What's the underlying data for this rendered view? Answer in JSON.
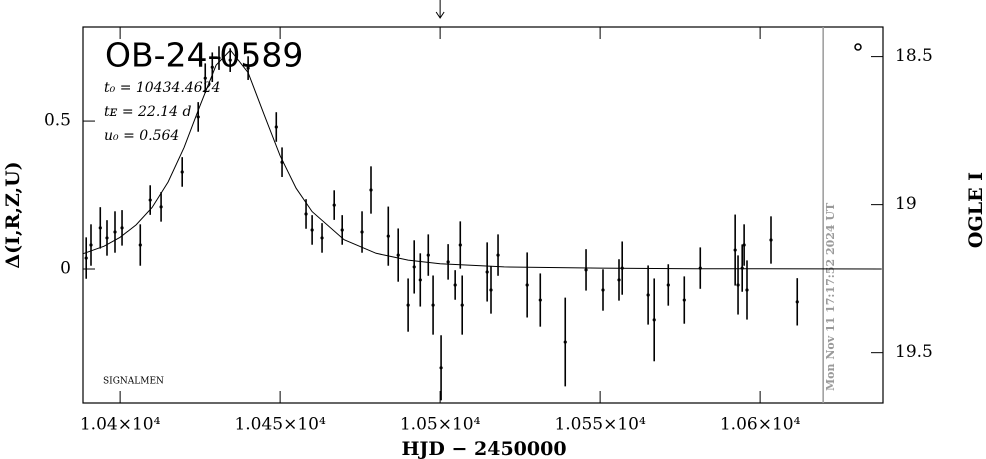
{
  "chart_data": {
    "type": "scatter",
    "title": "OB-24-0589",
    "parameters": [
      "t₀ = 10434.4624",
      "tᴇ = 22.14 d",
      "u₀ = 0.564"
    ],
    "note": "SIGNALMEN",
    "xlabel": "HJD − 2450000",
    "ylabel": "Δ(I,R,Z,U)",
    "y2label": "OGLE I",
    "xlim": [
      10388.4,
      10638.4
    ],
    "ylim": [
      -0.453,
      0.818
    ],
    "y2lim": [
      19.67,
      18.4
    ],
    "xticks": [
      {
        "value": 10400,
        "label": "1.04×10⁴"
      },
      {
        "value": 10450,
        "label": "1.045×10⁴"
      },
      {
        "value": 10500,
        "label": "1.05×10⁴"
      },
      {
        "value": 10550,
        "label": "1.055×10⁴"
      },
      {
        "value": 10600,
        "label": "1.06×10⁴"
      }
    ],
    "yticks": [
      0,
      0.5
    ],
    "y2ticks": [
      18.5,
      19,
      19.5
    ],
    "marker_x": 10619.7,
    "marker_label": "Mon Nov 11 17:17:52 2024 UT",
    "marker_color": "#9a9a9a",
    "arrow_x": 10500,
    "series": [
      {
        "type": "errorbar",
        "color": "#000000",
        "x": [
          10389.4,
          10390.9,
          10393.8,
          10395.9,
          10398.4,
          10400.6,
          10406.3,
          10409.4,
          10412.8,
          10419.4,
          10424.4,
          10426.6,
          10428.8,
          10430.9,
          10434.4,
          10440.0,
          10448.8,
          10450.6,
          10458.1,
          10460.0,
          10463.1,
          10466.9,
          10469.4,
          10475.6,
          10478.4,
          10483.8,
          10486.9,
          10490.0,
          10491.9,
          10493.8,
          10496.3,
          10497.8,
          10500.3,
          10502.5,
          10504.7,
          10506.3,
          10506.9,
          10514.7,
          10515.9,
          10518.1,
          10527.2,
          10531.3,
          10539.1,
          10545.6,
          10550.9,
          10555.9,
          10556.9,
          10565.0,
          10566.9,
          10571.3,
          10576.3,
          10581.3,
          10592.2,
          10593.1,
          10594.4,
          10595.0,
          10595.9,
          10603.4,
          10611.6
        ],
        "values": [
          0.037,
          0.081,
          0.139,
          0.105,
          0.125,
          0.139,
          0.081,
          0.233,
          0.21,
          0.328,
          0.514,
          0.645,
          0.682,
          0.713,
          0.706,
          0.679,
          0.48,
          0.361,
          0.186,
          0.132,
          0.105,
          0.216,
          0.132,
          0.125,
          0.267,
          0.111,
          0.047,
          -0.122,
          0.007,
          -0.037,
          0.047,
          -0.122,
          -0.334,
          0.024,
          -0.054,
          0.081,
          -0.122,
          -0.01,
          -0.071,
          0.047,
          -0.054,
          -0.105,
          -0.247,
          -0.003,
          -0.071,
          -0.037,
          0.003,
          -0.088,
          -0.172,
          -0.054,
          -0.105,
          0.003,
          0.064,
          -0.054,
          0.003,
          0.081,
          -0.071,
          0.098,
          -0.111
        ],
        "errors": [
          0.07,
          0.07,
          0.07,
          0.06,
          0.07,
          0.06,
          0.07,
          0.05,
          0.05,
          0.05,
          0.05,
          0.05,
          0.05,
          0.04,
          0.04,
          0.04,
          0.05,
          0.05,
          0.05,
          0.05,
          0.05,
          0.05,
          0.05,
          0.07,
          0.08,
          0.1,
          0.09,
          0.09,
          0.09,
          0.09,
          0.07,
          0.1,
          0.11,
          0.06,
          0.05,
          0.08,
          0.1,
          0.1,
          0.08,
          0.07,
          0.11,
          0.09,
          0.15,
          0.07,
          0.07,
          0.07,
          0.09,
          0.1,
          0.14,
          0.07,
          0.08,
          0.07,
          0.12,
          0.1,
          0.08,
          0.07,
          0.1,
          0.08,
          0.08
        ]
      },
      {
        "type": "line",
        "color": "#000000",
        "x": [
          10388,
          10395,
          10400,
          10405,
          10410,
          10415,
          10420,
          10425,
          10430,
          10434.46,
          10440,
          10445,
          10450,
          10455,
          10460,
          10470,
          10480,
          10490,
          10500,
          10520,
          10550,
          10580,
          10638
        ],
        "values": [
          0.05,
          0.077,
          0.107,
          0.149,
          0.208,
          0.294,
          0.411,
          0.553,
          0.689,
          0.74,
          0.664,
          0.522,
          0.383,
          0.273,
          0.194,
          0.099,
          0.053,
          0.03,
          0.018,
          0.007,
          0.003,
          0.001,
          0
        ]
      }
    ]
  }
}
